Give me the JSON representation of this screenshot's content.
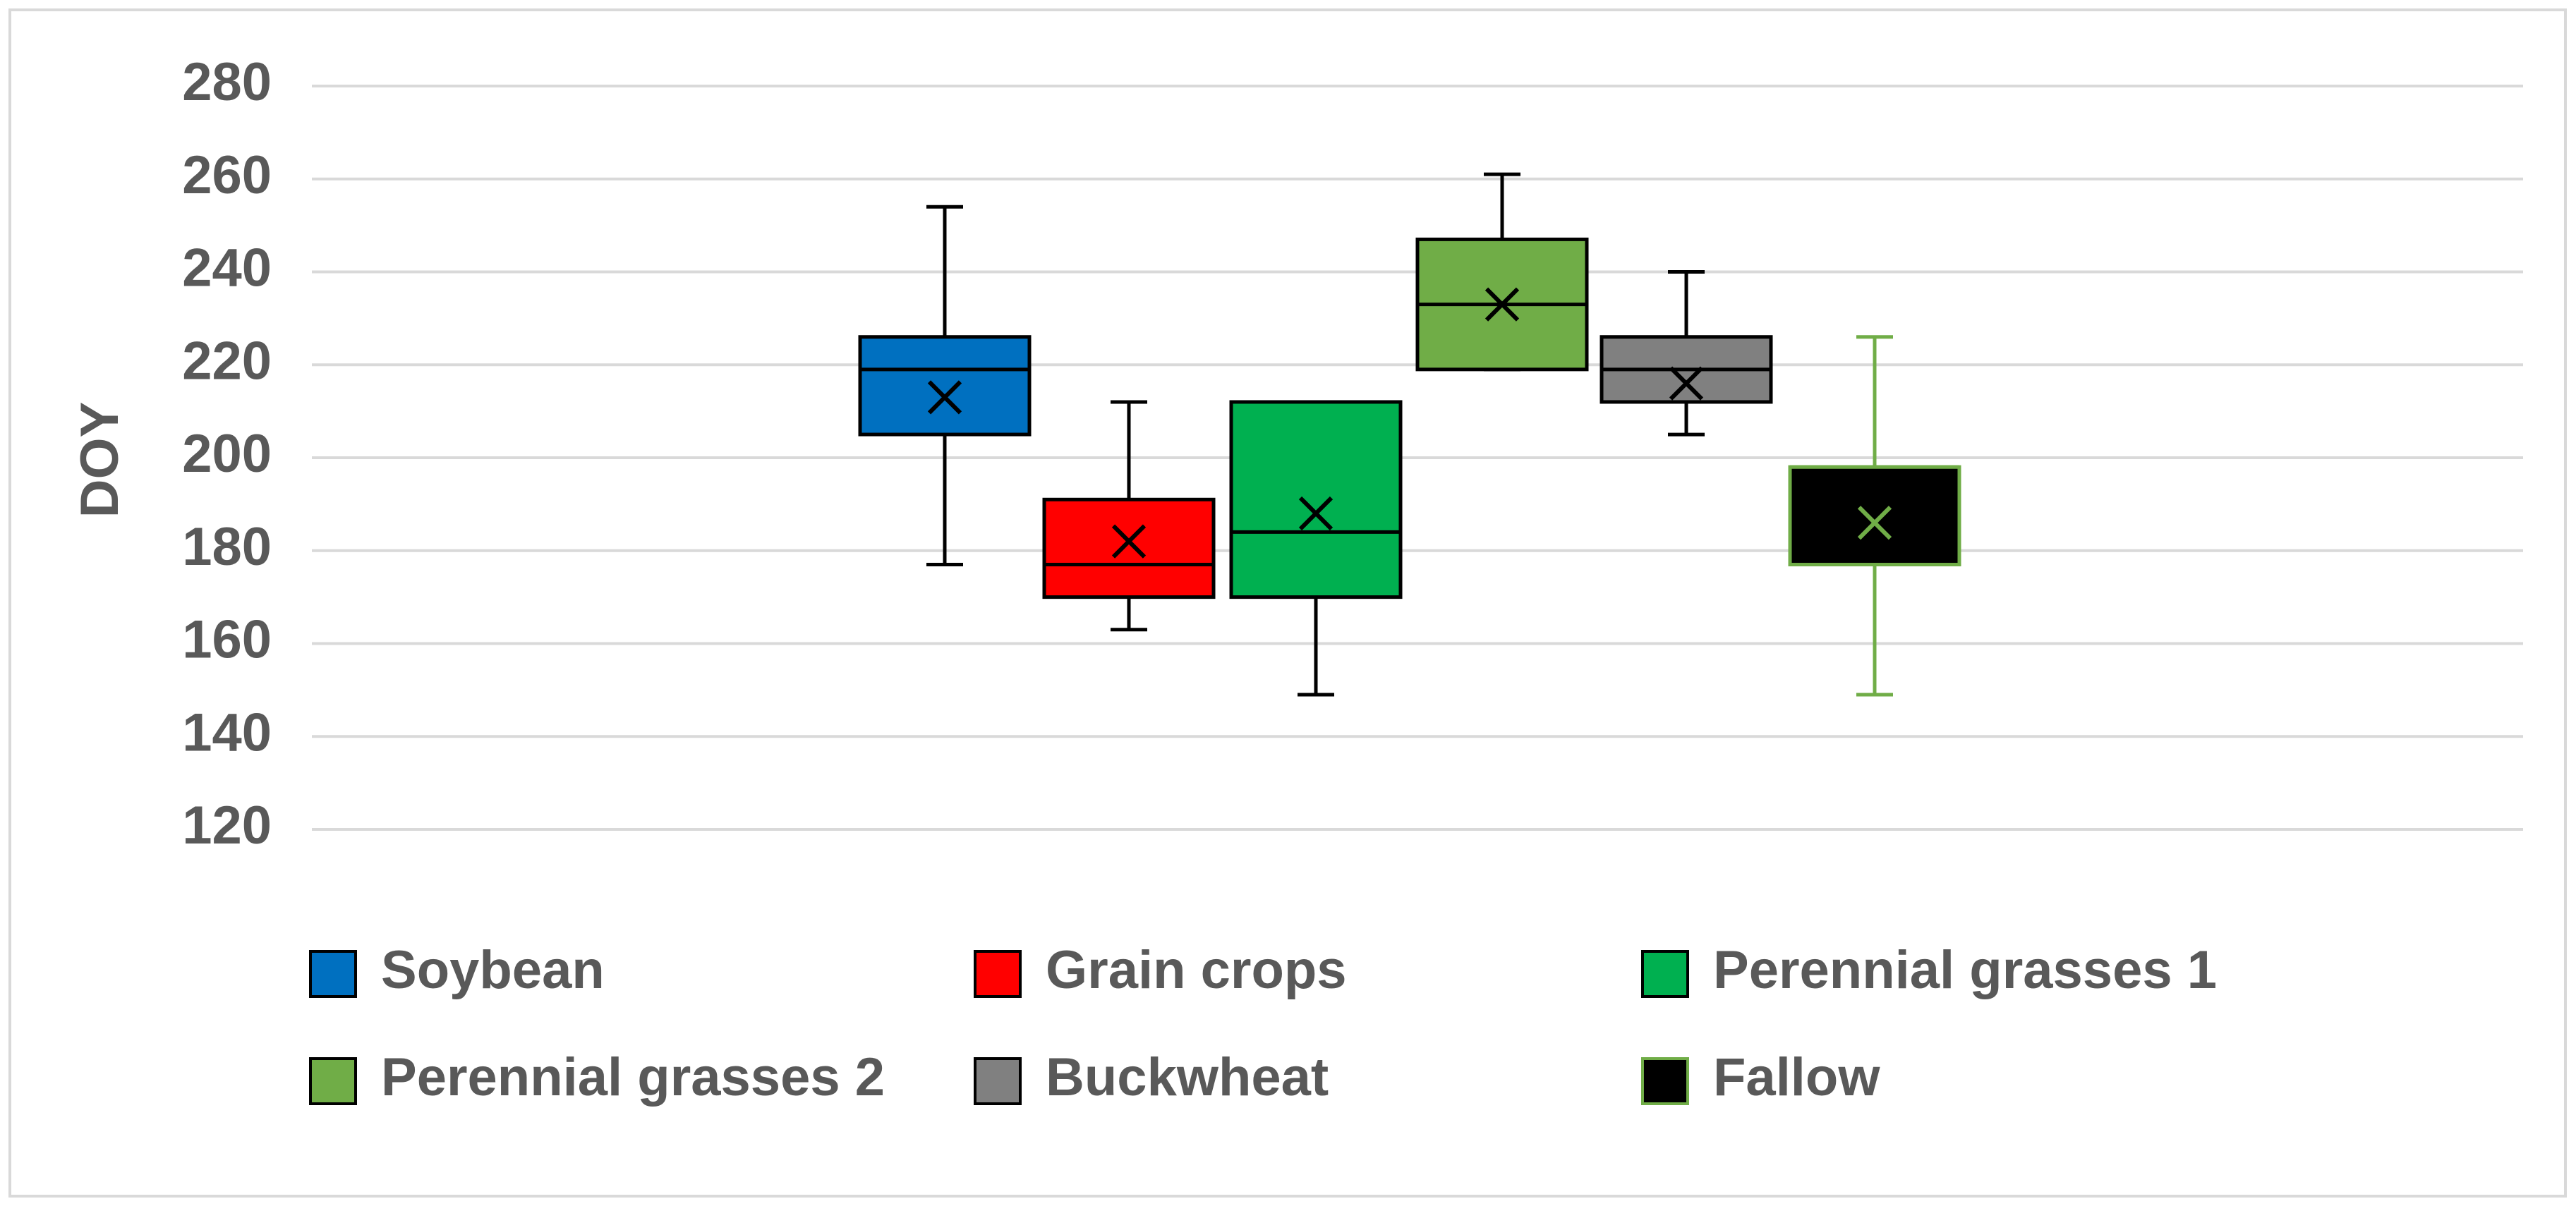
{
  "chart_data": {
    "type": "box",
    "title": "",
    "xlabel": "",
    "ylabel": "DOY",
    "ylim": [
      120,
      280
    ],
    "yticks": [
      "120",
      "140",
      "160",
      "180",
      "200",
      "220",
      "240",
      "260",
      "280"
    ],
    "grid": true,
    "legend_position": "bottom",
    "series": [
      {
        "name": "Soybean",
        "color": "#0070c0",
        "whisker_color": "#000000",
        "min": 177,
        "q1": 205,
        "median": 219,
        "q3": 226,
        "max": 254,
        "mean": 213
      },
      {
        "name": "Grain crops",
        "color": "#ff0000",
        "whisker_color": "#000000",
        "min": 163,
        "q1": 170,
        "median": 177,
        "q3": 191,
        "max": 212,
        "mean": 182
      },
      {
        "name": "Perennial grasses 1",
        "color": "#00b050",
        "whisker_color": "#000000",
        "min": 149,
        "q1": 170,
        "median": 184,
        "q3": 212,
        "max": 212,
        "mean": 188
      },
      {
        "name": "Perennial grasses 2",
        "color": "#70ad47",
        "whisker_color": "#000000",
        "min": 219,
        "q1": 219,
        "median": 233,
        "q3": 247,
        "max": 261,
        "mean": 233
      },
      {
        "name": "Buckwheat",
        "color": "#808080",
        "whisker_color": "#000000",
        "min": 205,
        "q1": 212,
        "median": 219,
        "q3": 226,
        "max": 240,
        "mean": 216
      },
      {
        "name": "Fallow",
        "color": "#000000",
        "whisker_color": "#70ad47",
        "min": 149,
        "q1": 177,
        "median": 198,
        "q3": 198,
        "max": 226,
        "mean": 186
      }
    ]
  }
}
